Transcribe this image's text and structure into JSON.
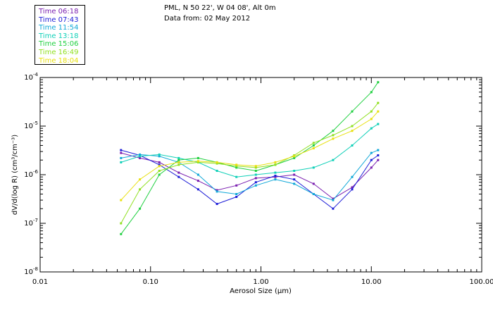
{
  "header": {
    "station": "PML, N 50 22', W 04 08', Alt 0m",
    "data_from": "Data from: 02 May 2012"
  },
  "legend": [
    {
      "label": "Time 06:18",
      "color": "#7a1fb0"
    },
    {
      "label": "Time 07:43",
      "color": "#2020d8"
    },
    {
      "label": "Time 11:54",
      "color": "#10a8d8"
    },
    {
      "label": "Time 13:18",
      "color": "#10d0b8"
    },
    {
      "label": "Time 15:06",
      "color": "#20d040"
    },
    {
      "label": "Time 16:49",
      "color": "#90e020"
    },
    {
      "label": "Time 18:04",
      "color": "#e8e010"
    }
  ],
  "chart_data": {
    "type": "line",
    "title": "PML, N 50 22', W 04 08', Alt 0m",
    "subtitle": "Data from: 02 May 2012",
    "xlabel": "Aerosol Size (µm)",
    "ylabel": "dV/d(log R) (cm³/cm⁻³)",
    "xscale": "log",
    "yscale": "log",
    "xlim": [
      0.01,
      100
    ],
    "ylim": [
      1e-08,
      0.0001
    ],
    "x_ticks": [
      {
        "value": 0.01,
        "label": "0.01"
      },
      {
        "value": 0.1,
        "label": "0.10"
      },
      {
        "value": 1,
        "label": "1.00"
      },
      {
        "value": 10,
        "label": "10.00"
      },
      {
        "value": 100,
        "label": "100.00"
      }
    ],
    "y_ticks": [
      {
        "value": 0.0001,
        "label": "10",
        "exp": "-4"
      },
      {
        "value": 1e-05,
        "label": "10",
        "exp": "-5"
      },
      {
        "value": 1e-06,
        "label": "10",
        "exp": "-6"
      },
      {
        "value": 1e-07,
        "label": "10",
        "exp": "-7"
      },
      {
        "value": 1e-08,
        "label": "10",
        "exp": "-8"
      }
    ],
    "x": [
      0.054,
      0.08,
      0.12,
      0.18,
      0.27,
      0.4,
      0.6,
      0.9,
      1.35,
      2.0,
      3.0,
      4.5,
      6.7,
      10.0,
      11.5
    ],
    "series": [
      {
        "name": "Time 06:18",
        "color": "#7a1fb0",
        "values": [
          2.8e-06,
          2.2e-06,
          1.8e-06,
          1.1e-06,
          7.5e-07,
          4.8e-07,
          6e-07,
          8.5e-07,
          9e-07,
          1e-06,
          6.5e-07,
          3.2e-07,
          5.5e-07,
          1.4e-06,
          2e-06
        ]
      },
      {
        "name": "Time 07:43",
        "color": "#2020d8",
        "values": [
          3.2e-06,
          2.5e-06,
          1.6e-06,
          9e-07,
          5e-07,
          2.5e-07,
          3.5e-07,
          7e-07,
          9.5e-07,
          8e-07,
          4e-07,
          2e-07,
          5e-07,
          2e-06,
          2.5e-06
        ]
      },
      {
        "name": "Time 11:54",
        "color": "#10a8d8",
        "values": [
          2.2e-06,
          2.6e-06,
          2.4e-06,
          1.8e-06,
          1e-06,
          4.5e-07,
          4e-07,
          6e-07,
          8e-07,
          6.5e-07,
          4e-07,
          3e-07,
          9e-07,
          2.8e-06,
          3.2e-06
        ]
      },
      {
        "name": "Time 13:18",
        "color": "#10d0b8",
        "values": [
          1.8e-06,
          2.4e-06,
          2.6e-06,
          2.2e-06,
          1.8e-06,
          1.2e-06,
          9e-07,
          1e-06,
          1.1e-06,
          1.2e-06,
          1.4e-06,
          2e-06,
          4e-06,
          9e-06,
          1.1e-05
        ]
      },
      {
        "name": "Time 15:06",
        "color": "#20d040",
        "values": [
          6e-08,
          2e-07,
          1e-06,
          2e-06,
          2.2e-06,
          1.8e-06,
          1.4e-06,
          1.2e-06,
          1.6e-06,
          2.2e-06,
          4e-06,
          8e-06,
          2e-05,
          5e-05,
          8e-05
        ]
      },
      {
        "name": "Time 16:49",
        "color": "#90e020",
        "values": [
          1e-07,
          5e-07,
          1.2e-06,
          1.6e-06,
          1.8e-06,
          1.7e-06,
          1.5e-06,
          1.4e-06,
          1.6e-06,
          2.5e-06,
          4.5e-06,
          6.5e-06,
          1e-05,
          2e-05,
          3e-05
        ]
      },
      {
        "name": "Time 18:04",
        "color": "#e8e010",
        "values": [
          3e-07,
          8e-07,
          1.5e-06,
          1.8e-06,
          1.9e-06,
          1.8e-06,
          1.6e-06,
          1.5e-06,
          1.8e-06,
          2.4e-06,
          3.5e-06,
          5.5e-06,
          8e-06,
          1.4e-05,
          2e-05
        ]
      }
    ]
  }
}
